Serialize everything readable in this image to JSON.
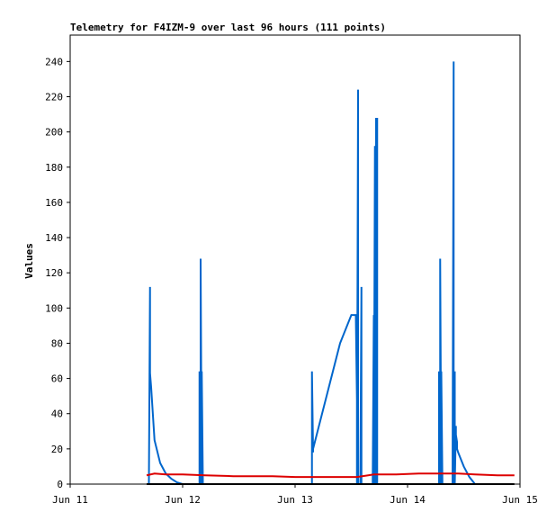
{
  "chart_data": {
    "type": "line",
    "title": "Telemetry for F4IZM-9 over last 96 hours (111 points)",
    "xlabel": "",
    "ylabel": "Values",
    "x_ticks": [
      "Jun 11",
      "Jun 12",
      "Jun 13",
      "Jun 14",
      "Jun 15"
    ],
    "xlim": [
      0,
      4
    ],
    "ylim": [
      0,
      255
    ],
    "y_ticks": [
      0,
      20,
      40,
      60,
      80,
      100,
      120,
      140,
      160,
      180,
      200,
      220,
      240
    ],
    "grid": false,
    "legend": "none",
    "series": [
      {
        "color": "#0066cc",
        "x": [
          0.68,
          0.7,
          0.71,
          0.71,
          0.72,
          0.73,
          0.74,
          0.75,
          0.8,
          0.85,
          0.9,
          0.95,
          1.0,
          1.05,
          1.1,
          1.15,
          1.15,
          1.16,
          1.16,
          1.17,
          1.17,
          1.18,
          1.18,
          1.19,
          1.19,
          1.2,
          2.15,
          2.15,
          2.16,
          2.16,
          2.2,
          2.3,
          2.4,
          2.5,
          2.54,
          2.55,
          2.55,
          2.56,
          2.56,
          2.58,
          2.59,
          2.59,
          2.6,
          2.6,
          2.61,
          2.61,
          2.62,
          2.65,
          2.69,
          2.7,
          2.7,
          2.71,
          2.71,
          2.72,
          2.72,
          2.73,
          2.73,
          2.74,
          3.28,
          3.28,
          3.29,
          3.29,
          3.3,
          3.3,
          3.31,
          3.4,
          3.41,
          3.41,
          3.42,
          3.42,
          3.43,
          3.43,
          3.44,
          3.44,
          3.45,
          3.5,
          3.55,
          3.6,
          3.63,
          3.65
        ],
        "y": [
          0,
          0,
          112,
          63,
          55,
          45,
          35,
          25,
          12,
          6,
          3,
          1,
          0,
          0,
          0,
          0,
          64,
          0,
          128,
          0,
          64,
          0,
          0,
          0,
          0,
          0,
          0,
          64,
          18,
          20,
          30,
          55,
          80,
          96,
          96,
          48,
          0,
          224,
          0,
          0,
          112,
          0,
          0,
          0,
          0,
          0,
          0,
          0,
          0,
          96,
          0,
          192,
          0,
          208,
          0,
          208,
          0,
          0,
          0,
          64,
          0,
          128,
          0,
          64,
          0,
          0,
          240,
          0,
          64,
          0,
          33,
          28,
          24,
          20,
          18,
          10,
          4,
          0,
          0,
          0
        ]
      },
      {
        "color": "#dd0000",
        "x": [
          0.68,
          0.75,
          0.85,
          1.0,
          1.2,
          1.45,
          1.8,
          2.0,
          2.3,
          2.55,
          2.65,
          2.7,
          2.9,
          3.1,
          3.3,
          3.45,
          3.6,
          3.8,
          3.95
        ],
        "y": [
          5,
          6,
          5.5,
          5.5,
          5,
          4.5,
          4.5,
          4,
          4,
          4,
          5,
          5.5,
          5.5,
          6,
          6,
          6,
          5.5,
          5,
          5
        ]
      },
      {
        "color": "#000000",
        "x": [
          0.68,
          3.95
        ],
        "y": [
          0,
          0
        ]
      }
    ]
  }
}
